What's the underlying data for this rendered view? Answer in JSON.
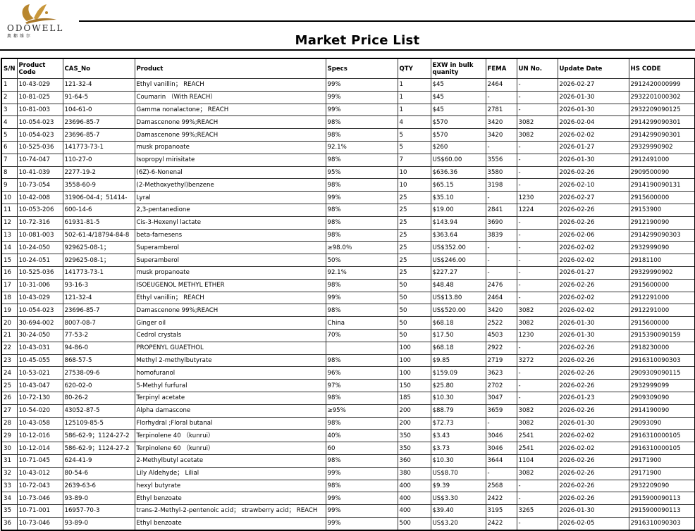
{
  "logo": {
    "brand": "ODOWELL",
    "subtitle": "奥都维尔",
    "color": "#b8862e"
  },
  "title": "Market Price List",
  "columns": [
    "S/N",
    "Product Code",
    "CAS_No",
    "Product",
    "Specs",
    "QTY",
    "EXW in bulk quanity",
    "FEMA",
    "UN No.",
    "Update Date",
    "HS CODE"
  ],
  "rows": [
    [
      "1",
      "10-43-029",
      "121-32-4",
      "Ethyl vanillin； REACH",
      "99%",
      "1",
      "$45",
      "2464",
      "-",
      "2026-02-27",
      "2912420000999"
    ],
    [
      "2",
      "10-81-025",
      "91-64-5",
      "Coumarin （With REACH）",
      "99%",
      "1",
      "$45",
      "-",
      "-",
      "2026-01-30",
      "2932201000302"
    ],
    [
      "3",
      "10-81-003",
      "104-61-0",
      "Gamma nonalactone； REACH",
      "99%",
      "1",
      "$45",
      "2781",
      "-",
      "2026-01-30",
      "2932209090125"
    ],
    [
      "4",
      "10-054-023",
      "23696-85-7",
      "Damascenone 99%;REACH",
      "98%",
      "4",
      "$570",
      "3420",
      "3082",
      "2026-02-04",
      " 2914299090301"
    ],
    [
      "5",
      "10-054-023",
      "23696-85-7",
      "Damascenone 99%;REACH",
      "98%",
      "5",
      "$570",
      "3420",
      "3082",
      "2026-02-02",
      " 2914299090301"
    ],
    [
      "6",
      "10-525-036",
      "141773-73-1",
      "musk propanoate",
      "92.1%",
      "5",
      "$260",
      "-",
      "-",
      "2026-01-27",
      "29329990902"
    ],
    [
      "7",
      "10-74-047",
      "110-27-0",
      "Isopropyl mirisitate",
      "98%",
      "7",
      "US$60.00",
      "3556",
      "-",
      "2026-01-30",
      "2912491000"
    ],
    [
      "8",
      "10-41-039",
      "2277-19-2",
      "(6Z)-6-Nonenal",
      "95%",
      "10",
      "$636.36",
      "3580",
      "-",
      "2026-02-26",
      "2909500090"
    ],
    [
      "9",
      "10-73-054",
      "3558-60-9",
      "(2-Methoxyethyl)benzene",
      "98%",
      "10",
      "$65.15",
      "3198",
      "-",
      "2026-02-10",
      "2914190090131"
    ],
    [
      "10",
      "10-42-008",
      "31906-04-4；51414-",
      "Lyral",
      "99%",
      "25",
      "$35.10",
      "-",
      "1230",
      "2026-02-27",
      "2915600000"
    ],
    [
      "11",
      "10-053-206",
      "600-14-6",
      "2,3-pentanedione",
      "98%",
      "25",
      "$19.00",
      "2841",
      "1224",
      "2026-02-26",
      "29153900"
    ],
    [
      "12",
      "10-72-316",
      "61931-81-5",
      "Cis-3-Hexenyl lactate",
      "98%",
      "25",
      "$143.94",
      "3690",
      "-",
      "2026-02-26",
      "2912190090"
    ],
    [
      "13",
      "10-081-003",
      "502-61-4/18794-84-8",
      "beta-farnesens",
      "98%",
      "25",
      "$363.64",
      "3839",
      "-",
      "2026-02-06",
      "2914299090303"
    ],
    [
      "14",
      "10-24-050",
      "929625-08-1；",
      "Superamberol",
      "≥98.0％",
      "25",
      "US$352.00",
      "-",
      "-",
      "2026-02-02",
      "2932999090"
    ],
    [
      "15",
      "10-24-051",
      "929625-08-1；",
      "Superamberol",
      "50%",
      "25",
      "US$246.00",
      "-",
      "-",
      "2026-02-02",
      "29181100"
    ],
    [
      "16",
      "10-525-036",
      "141773-73-1",
      "musk propanoate",
      "92.1%",
      "25",
      "$227.27",
      "-",
      "-",
      "2026-01-27",
      "29329990902"
    ],
    [
      "17",
      "10-31-006",
      "93-16-3",
      "ISOEUGENOL METHYL ETHER",
      "98%",
      "50",
      "$48.48",
      "2476",
      "-",
      "2026-02-26",
      "2915600000"
    ],
    [
      "18",
      "10-43-029",
      "121-32-4",
      "Ethyl vanillin； REACH",
      "99%",
      "50",
      "US$13.80",
      "2464",
      "-",
      "2026-02-02",
      "2912291000"
    ],
    [
      "19",
      "10-054-023",
      "23696-85-7",
      "Damascenone 99%;REACH",
      "98%",
      "50",
      "US$520.00",
      "3420",
      "3082",
      "2026-02-02",
      "2912291000"
    ],
    [
      "20",
      "30-694-002",
      "8007-08-7",
      "Ginger oil",
      "China",
      "50",
      "$68.18",
      "2522",
      "3082",
      "2026-01-30",
      "2915600000"
    ],
    [
      "21",
      "30-24-050",
      "77-53-2",
      "Cedrol crystals",
      "70%",
      "50",
      "$17.50",
      "4503",
      "1230",
      "2026-01-30",
      "2915390090159"
    ],
    [
      "22",
      "10-43-031",
      "94-86-0",
      "PROPENYL GUAETHOL",
      "",
      "100",
      "$68.18",
      "2922",
      "-",
      "2026-02-26",
      "2918230000"
    ],
    [
      "23",
      "10-45-055",
      "868-57-5",
      "Methyl 2-methylbutyrate",
      "98%",
      "100",
      "$9.85",
      "2719",
      "3272",
      "2026-02-26",
      "2916310090303"
    ],
    [
      "24",
      "10-53-021",
      "27538-09-6",
      "homofuranol",
      "96%",
      "100",
      "$159.09",
      "3623",
      "-",
      "2026-02-26",
      "2909309090115"
    ],
    [
      "25",
      "10-43-047",
      "620-02-0",
      "5-Methyl furfural",
      "97%",
      "150",
      "$25.80",
      "2702",
      "-",
      "2026-02-26",
      "2932999099"
    ],
    [
      "26",
      "10-72-130",
      "80-26-2",
      "Terpinyl acetate",
      "98%",
      "185",
      "$10.30",
      "3047",
      "-",
      "2026-01-23",
      "2909309090"
    ],
    [
      "27",
      "10-54-020",
      "43052-87-5",
      "Alpha damascone",
      "≥95%",
      "200",
      "$88.79",
      "3659",
      "3082",
      "2026-02-26",
      "2914190090"
    ],
    [
      "28",
      "10-43-058",
      "125109-85-5",
      "Florhydral ;Floral butanal",
      "98%",
      "200",
      "$72.73",
      "-",
      "3082",
      "2026-01-30",
      "29093090"
    ],
    [
      "29",
      "10-12-016",
      "586-62-9；1124-27-2",
      "Terpinolene 40 （kunrui）",
      "40%",
      "350",
      "$3.43",
      "3046",
      "2541",
      "2026-02-02",
      "2916310000105"
    ],
    [
      "30",
      "10-12-014",
      "586-62-9；1124-27-2",
      "Terpinolene 60 （kunrui）",
      "60",
      "350",
      "$3.73",
      "3046",
      "2541",
      "2026-02-02",
      "2916310000105"
    ],
    [
      "31",
      "10-71-045",
      "624-41-9",
      "2-Methylbutyl acetate",
      "98%",
      "360",
      "$10.30",
      "3644",
      "1104",
      "2026-02-26",
      "29171900"
    ],
    [
      "32",
      "10-43-012",
      "80-54-6",
      "Lily Aldehyde； Lilial",
      "99%",
      "380",
      "US$8.70",
      "-",
      "3082",
      "2026-02-26",
      "29171900"
    ],
    [
      "33",
      "10-72-043",
      "2639-63-6",
      "hexyl butyrate",
      "98%",
      "400",
      "$9.39",
      "2568",
      "-",
      "2026-02-26",
      "2932209090"
    ],
    [
      "34",
      "10-73-046",
      "93-89-0",
      "Ethyl benzoate",
      "99%",
      "400",
      "US$3.30",
      "2422",
      "-",
      "2026-02-26",
      "2915900090113"
    ],
    [
      "35",
      "10-71-001",
      "16957-70-3",
      "trans-2-Methyl-2-pentenoic acid； strawberry acid； REACH",
      "99%",
      "400",
      "$39.40",
      "3195",
      "3265",
      "2026-01-30",
      "2915900090113"
    ],
    [
      "36",
      "10-73-046",
      "93-89-0",
      "Ethyl benzoate",
      "99%",
      "500",
      "US$3.20",
      "2422",
      "-",
      "2026-02-05",
      "2916310090303"
    ]
  ]
}
